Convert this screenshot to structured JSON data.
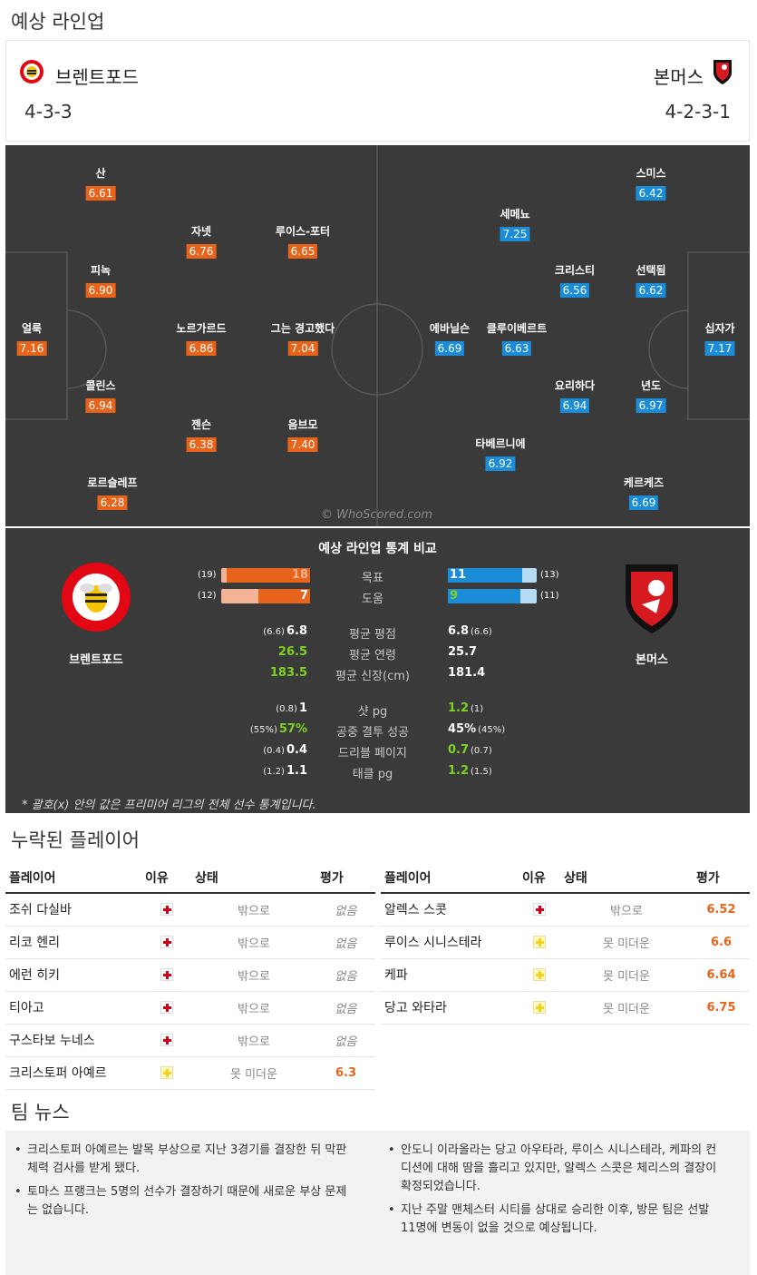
{
  "lineup_title": "예상 라인업",
  "home": {
    "name": "브렌트포드",
    "formation": "4-3-3",
    "color": "#e8641b"
  },
  "away": {
    "name": "본머스",
    "formation": "4-2-3-1",
    "color": "#1a8cd8"
  },
  "home_players": [
    {
      "name": "산",
      "rating": "6.61"
    },
    {
      "name": "자넷",
      "rating": "6.76"
    },
    {
      "name": "루이스-포터",
      "rating": "6.65"
    },
    {
      "name": "피녹",
      "rating": "6.90"
    },
    {
      "name": "얼룩",
      "rating": "7.16"
    },
    {
      "name": "노르가르드",
      "rating": "6.86"
    },
    {
      "name": "그는 경고했다",
      "rating": "7.04"
    },
    {
      "name": "콜린스",
      "rating": "6.94"
    },
    {
      "name": "젠슨",
      "rating": "6.38"
    },
    {
      "name": "음브모",
      "rating": "7.40"
    },
    {
      "name": "로르슬레프",
      "rating": "6.28"
    }
  ],
  "away_players": [
    {
      "name": "스미스",
      "rating": "6.42"
    },
    {
      "name": "세메뇨",
      "rating": "7.25"
    },
    {
      "name": "크리스티",
      "rating": "6.56"
    },
    {
      "name": "선택됨",
      "rating": "6.62"
    },
    {
      "name": "에바닐슨",
      "rating": "6.69"
    },
    {
      "name": "클루이베르트",
      "rating": "6.63"
    },
    {
      "name": "십자가",
      "rating": "7.17"
    },
    {
      "name": "요리하다",
      "rating": "6.94"
    },
    {
      "name": "년도",
      "rating": "6.97"
    },
    {
      "name": "타베르니에",
      "rating": "6.92"
    },
    {
      "name": "케르케즈",
      "rating": "6.69"
    }
  ],
  "watermark": "© WhoScored.com",
  "stats": {
    "title": "예상 라인업 통계 비교",
    "goals": {
      "label": "목표",
      "home": 18,
      "home_league": "(19)",
      "away": 11,
      "away_league": "(13)"
    },
    "assists": {
      "label": "도움",
      "home": 7,
      "home_league": "(12)",
      "away": 9,
      "away_league": "(11)"
    },
    "rows": [
      {
        "label": "평균 평점",
        "home": "6.8",
        "home_league": "(6.6)",
        "away": "6.8",
        "away_league": "(6.6)"
      },
      {
        "label": "평균 연령",
        "home": "26.5",
        "home_league": "",
        "away": "25.7",
        "away_league": ""
      },
      {
        "label": "평균 신장(cm)",
        "home": "183.5",
        "home_league": "",
        "away": "181.4",
        "away_league": ""
      },
      {
        "label": "샷 pg",
        "home": "1",
        "home_league": "(0.8)",
        "away": "1.2",
        "away_league": "(1)"
      },
      {
        "label": "공중 결투 성공",
        "home": "57%",
        "home_league": "(55%)",
        "away": "45%",
        "away_league": "(45%)"
      },
      {
        "label": "드리블 페이지",
        "home": "0.4",
        "home_league": "(0.4)",
        "away": "0.7",
        "away_league": "(0.7)"
      },
      {
        "label": "태클 pg",
        "home": "1.1",
        "home_league": "(1.2)",
        "away": "1.2",
        "away_league": "(1.5)"
      }
    ],
    "footnote": "* 괄호(x) 안의 값은 프리미어 리그의 전체 선수 통계입니다."
  },
  "missing": {
    "title": "누락된 플레이어",
    "headers": {
      "player": "플레이어",
      "reason": "이유",
      "status": "상태",
      "rating": "평가"
    },
    "home": [
      {
        "name": "조쉬 다실바",
        "status": "밖으로",
        "rating": "없음"
      },
      {
        "name": "리코 헨리",
        "status": "밖으로",
        "rating": "없음"
      },
      {
        "name": "에런 히키",
        "status": "밖으로",
        "rating": "없음"
      },
      {
        "name": "티아고",
        "status": "밖으로",
        "rating": "없음"
      },
      {
        "name": "구스타보 누네스",
        "status": "밖으로",
        "rating": "없음"
      },
      {
        "name": "크리스토퍼 아예르",
        "status": "못 미더운",
        "rating": "6.3"
      }
    ],
    "away": [
      {
        "name": "알렉스 스콧",
        "status": "밖으로",
        "rating": "6.52"
      },
      {
        "name": "루이스 시니스테라",
        "status": "못 미더운",
        "rating": "6.6"
      },
      {
        "name": "케파",
        "status": "못 미더운",
        "rating": "6.64"
      },
      {
        "name": "당고 와타라",
        "status": "못 미더운",
        "rating": "6.75"
      }
    ]
  },
  "news": {
    "title": "팀 뉴스",
    "home": [
      "크리스토퍼 아예르는 발목 부상으로 지난 3경기를 결장한 뒤 막판 체력 검사를 받게 됐다.",
      "토마스 프랭크는 5명의 선수가 결장하기 때문에 새로운 부상 문제는 없습니다."
    ],
    "away": [
      "안도니 이라올라는 당고 아우타라, 루이스 시니스테라, 케파의 컨디션에 대해 땀을 흘리고 있지만, 알렉스 스콧은 체리스의 결장이 확정되었습니다.",
      "지난 주말 맨체스터 시티를 상대로 승리한 이후, 방문 팀은 선발 11명에 변동이 없을 것으로 예상됩니다."
    ]
  }
}
